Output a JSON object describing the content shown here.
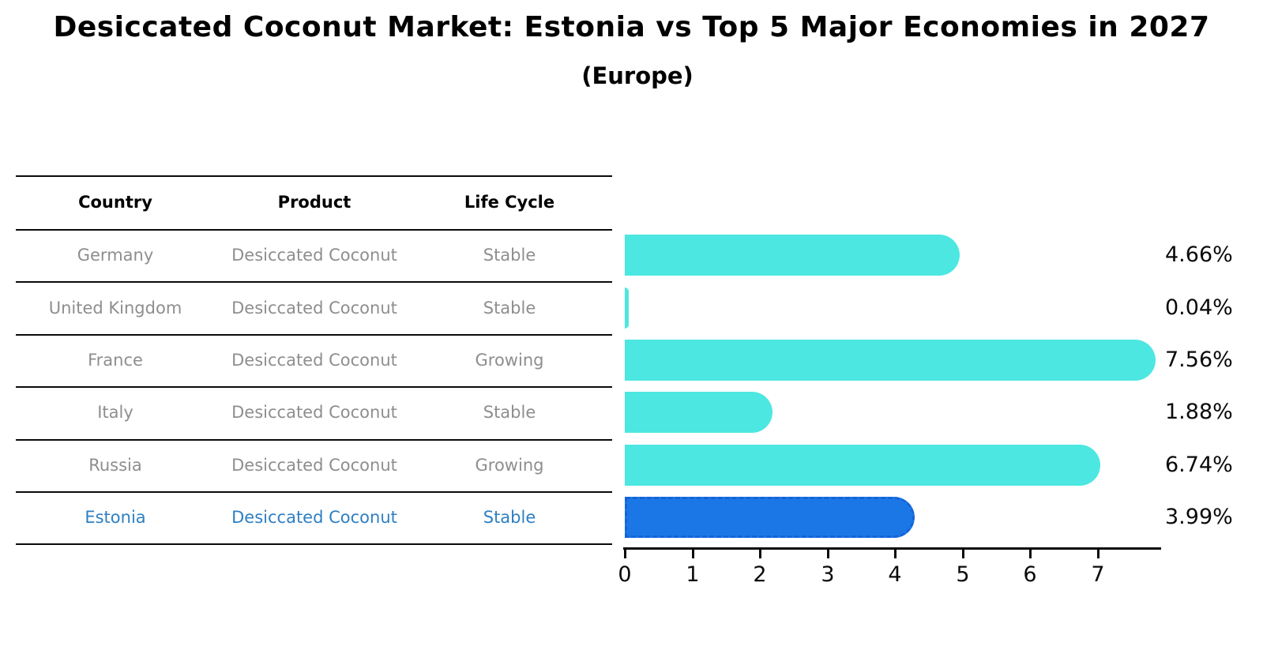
{
  "title": "Desiccated Coconut Market: Estonia vs Top 5 Major Economies in 2027",
  "subtitle": "(Europe)",
  "table": {
    "headers": [
      "Country",
      "Product",
      "Life Cycle"
    ],
    "rows": [
      {
        "country": "Germany",
        "product": "Desiccated Coconut",
        "life_cycle": "Stable"
      },
      {
        "country": "United Kingdom",
        "product": "Desiccated Coconut",
        "life_cycle": "Stable"
      },
      {
        "country": "France",
        "product": "Desiccated Coconut",
        "life_cycle": "Growing"
      },
      {
        "country": "Italy",
        "product": "Desiccated Coconut",
        "life_cycle": "Stable"
      },
      {
        "country": "Russia",
        "product": "Desiccated Coconut",
        "life_cycle": "Growing"
      },
      {
        "country": "Estonia",
        "product": "Desiccated Coconut",
        "life_cycle": "Stable"
      }
    ],
    "highlighted_row": "Estonia"
  },
  "chart_data": {
    "type": "bar",
    "orientation": "horizontal",
    "categories": [
      "Germany",
      "United Kingdom",
      "France",
      "Italy",
      "Russia",
      "Estonia"
    ],
    "values": [
      4.66,
      0.04,
      7.56,
      1.88,
      6.74,
      3.99
    ],
    "value_labels": [
      "4.66%",
      "0.04%",
      "7.56%",
      "1.88%",
      "6.74%",
      "3.99%"
    ],
    "unit": "%",
    "xticks": [
      "0",
      "1",
      "2",
      "3",
      "4",
      "5",
      "6",
      "7"
    ],
    "xlim": [
      0,
      7.94
    ],
    "grid": false,
    "legend": "none",
    "bar_color": "#4DE7E1",
    "highlight_bar_color": "#1B77E6",
    "highlight_edge_color": "#1464D8",
    "highlight_index": 5
  },
  "colors": {
    "background": "#ffffff",
    "title_text": "#000000",
    "table_header_text": "#000000",
    "table_row_text": "#8E8E8E",
    "highlight_text": "#2E7FC3",
    "axis": "#0a0a0a"
  }
}
